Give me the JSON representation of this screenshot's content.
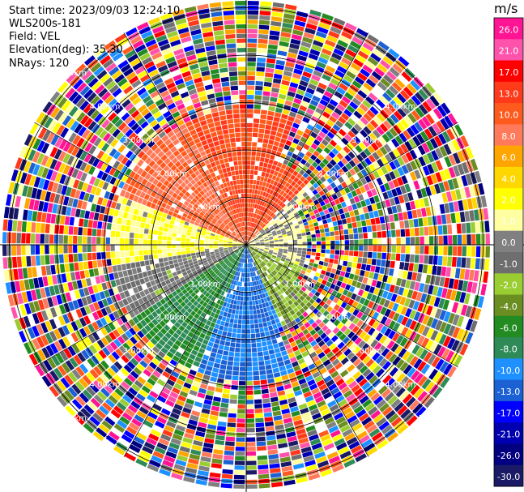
{
  "header": {
    "start_time": "Start time: 2023/09/03 12:24:10",
    "instrument": "WLS200s-181",
    "field": "Field: VEL",
    "elevation": "Elevation(deg): 35.30",
    "nrays": "NRays: 120"
  },
  "colorbar": {
    "unit": "m/s",
    "ticks": [
      "26.0",
      "21.0",
      "17.0",
      "13.0",
      "10.0",
      "8.0",
      "6.0",
      "4.0",
      "2.0",
      "1.0",
      "0.0",
      "-1.0",
      "-2.0",
      "-4.0",
      "-6.0",
      "-8.0",
      "-10.0",
      "-13.0",
      "-17.0",
      "-21.0",
      "-26.0",
      "-30.0"
    ],
    "colors": [
      "#ff1493",
      "#ff52aa",
      "#ff0000",
      "#ff3a1a",
      "#ff5a1e",
      "#ff7a5a",
      "#ffa500",
      "#ffd700",
      "#ffff00",
      "#fffea0",
      "#808080",
      "#6e6e6e",
      "#9acd32",
      "#6b8e23",
      "#228b22",
      "#2e8b57",
      "#1e90ff",
      "#1c61d4",
      "#0000ff",
      "#0000b0",
      "#000080",
      "#1a1a66"
    ]
  },
  "chart_data": {
    "type": "heatmap",
    "projection": "polar-ppi",
    "field": "VEL",
    "units": "m/s",
    "n_rays": 120,
    "elevation_deg": 35.3,
    "range_ring_labels_km": [
      "1.00km",
      "2.00km",
      "3.00km",
      "4.00km",
      "5.00km"
    ],
    "value_scale_m_s": [
      -30,
      26
    ],
    "clean_region_max_range_km": 2.9,
    "sector_mean_velocity_m_s": [
      {
        "sector": "north",
        "value": 13.0
      },
      {
        "sector": "north-west",
        "value": 10.0
      },
      {
        "sector": "west",
        "value": 2.0
      },
      {
        "sector": "west-south-west",
        "value": 0.0
      },
      {
        "sector": "south-west",
        "value": -6.0
      },
      {
        "sector": "south",
        "value": -10.0
      },
      {
        "sector": "south-east",
        "value": -2.0
      },
      {
        "sector": "east",
        "value": 1.0
      }
    ]
  }
}
